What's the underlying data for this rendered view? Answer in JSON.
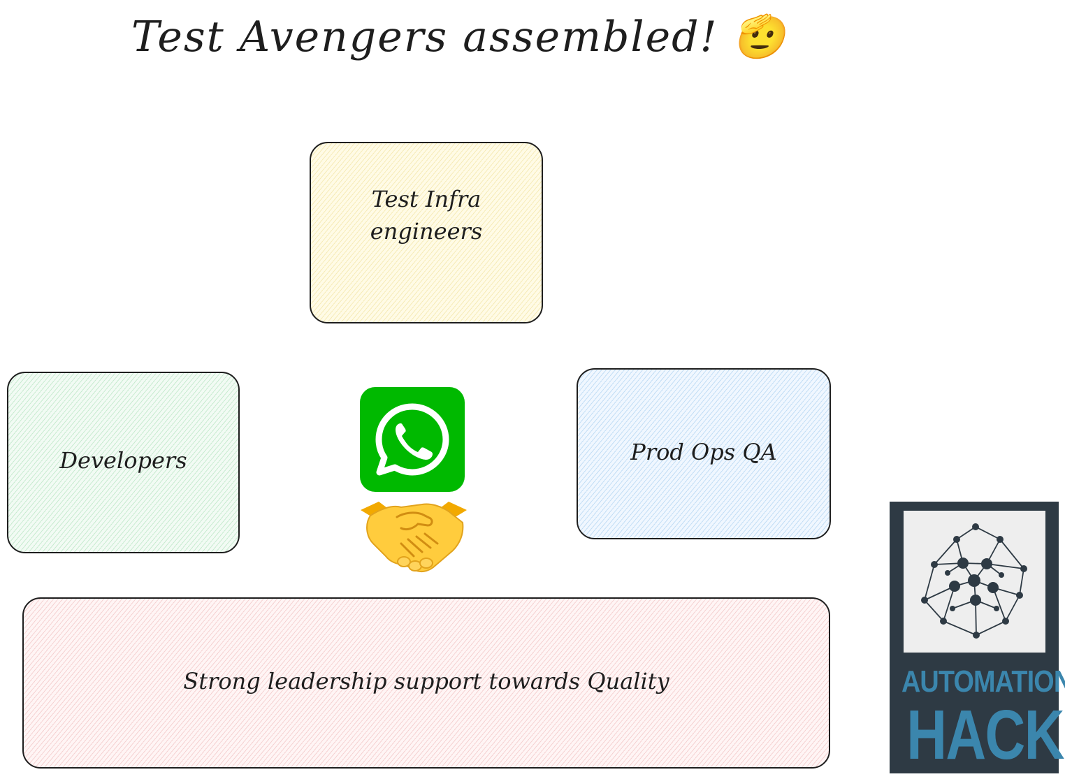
{
  "title": "Test Avengers assembled! 🫡",
  "boxes": {
    "infra": {
      "label": "Test Infra engineers",
      "fill": "#fff9db"
    },
    "developers": {
      "label": "Developers",
      "fill": "#ebfbee"
    },
    "prod_ops": {
      "label": "Prod Ops QA",
      "fill": "#e7f5ff"
    },
    "leadership": {
      "label": "Strong leadership support towards Quality",
      "fill": "#fff0f0"
    }
  },
  "icons": {
    "messaging": "whatsapp-icon",
    "collaboration": "handshake-icon",
    "logo": "automation-hacks-logo"
  },
  "logo": {
    "line1": "AUTOMATION",
    "line2": "HACKS",
    "bg_color": "#2e3a44",
    "text_color": "#3b86ad"
  },
  "colors": {
    "whatsapp_green": "#00b900",
    "stroke": "#1e1e1e"
  }
}
